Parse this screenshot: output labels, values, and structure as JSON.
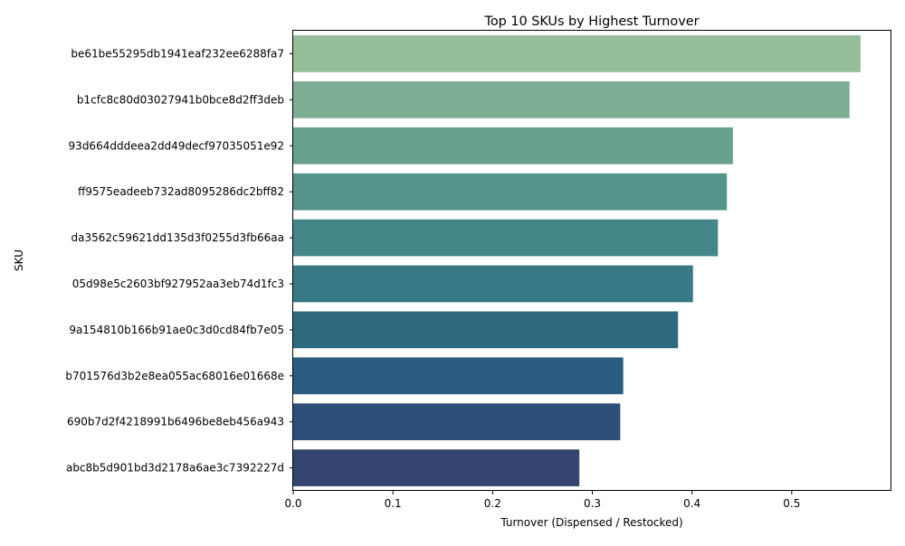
{
  "chart_data": {
    "type": "bar",
    "orientation": "horizontal",
    "title": "Top 10 SKUs by Highest Turnover",
    "xlabel": "Turnover (Dispensed / Restocked)",
    "ylabel": "SKU",
    "xlim": [
      0,
      0.6
    ],
    "xticks": [
      "0.0",
      "0.1",
      "0.2",
      "0.3",
      "0.4",
      "0.5"
    ],
    "grid": false,
    "legend": "none",
    "categories": [
      "be61be55295db1941eaf232ee6288fa7",
      "b1cfc8c80d03027941b0bce8d2ff3deb",
      "93d664dddeea2dd49decf97035051e92",
      "ff9575eadeeb732ad8095286dc2bff82",
      "da3562c59621dd135d3f0255d3fb66aa",
      "05d98e5c2603bf927952aa3eb74d1fc3",
      "9a154810b166b91ae0c3d0cd84fb7e05",
      "b701576d3b2e8ea055ac68016e01668e",
      "690b7d2f4218991b6496be8eb456a943",
      "abc8b5d901bd3d2178a6ae3c7392227d"
    ],
    "values": [
      0.569,
      0.558,
      0.441,
      0.435,
      0.426,
      0.401,
      0.386,
      0.331,
      0.328,
      0.287
    ],
    "colors": [
      "#94bd98",
      "#7dae94",
      "#67a08d",
      "#55948a",
      "#458688",
      "#397985",
      "#2d6a80",
      "#2a5d7f",
      "#2d4e77",
      "#33446e"
    ]
  }
}
